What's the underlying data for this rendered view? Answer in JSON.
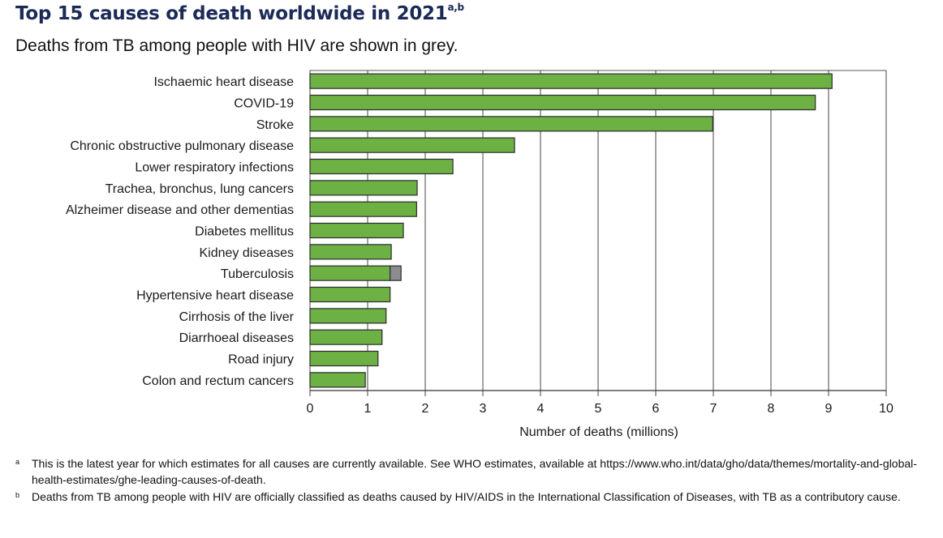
{
  "header": {
    "title": "Top 15 causes of death worldwide in 2021",
    "title_superscript": "a,b",
    "subtitle": "Deaths from TB among people with HIV are shown in grey."
  },
  "chart_data": {
    "type": "bar",
    "orientation": "horizontal",
    "stacked": true,
    "title": "Top 15 causes of death worldwide in 2021",
    "subtitle": "Deaths from TB among people with HIV are shown in grey.",
    "xlabel": "Number of deaths (millions)",
    "ylabel": "",
    "xlim": [
      0,
      10
    ],
    "xticks": [
      "0",
      "1",
      "2",
      "3",
      "4",
      "5",
      "6",
      "7",
      "8",
      "9",
      "10"
    ],
    "grid": true,
    "categories": [
      "Ischaemic heart disease",
      "COVID-19",
      "Stroke",
      "Chronic obstructive pulmonary disease",
      "Lower respiratory infections",
      "Trachea, bronchus, lung cancers",
      "Alzheimer disease and other dementias",
      "Diabetes mellitus",
      "Kidney diseases",
      "Tuberculosis",
      "Hypertensive heart disease",
      "Cirrhosis of the liver",
      "Diarrhoeal diseases",
      "Road injury",
      "Colon and rectum cancers"
    ],
    "series": [
      {
        "name": "Deaths",
        "color": "#6db144",
        "values": [
          9.06,
          8.77,
          6.99,
          3.55,
          2.48,
          1.86,
          1.85,
          1.62,
          1.41,
          1.39,
          1.39,
          1.32,
          1.25,
          1.18,
          0.96
        ]
      },
      {
        "name": "TB deaths among people with HIV",
        "color": "#8c8b8e",
        "values": [
          0,
          0,
          0,
          0,
          0,
          0,
          0,
          0,
          0,
          0.19,
          0,
          0,
          0,
          0,
          0
        ]
      }
    ]
  },
  "footnotes": [
    {
      "marker": "a",
      "text": "This is the latest year for which estimates for all causes are currently available. See WHO estimates, available at https://www.who.int/data/gho/data/themes/mortality-and-global-health-estimates/ghe-leading-causes-of-death."
    },
    {
      "marker": "b",
      "text": "Deaths from TB among people with HIV are officially classified as deaths caused by HIV/AIDS in the International Classification of Diseases, with TB as a contributory cause."
    }
  ]
}
